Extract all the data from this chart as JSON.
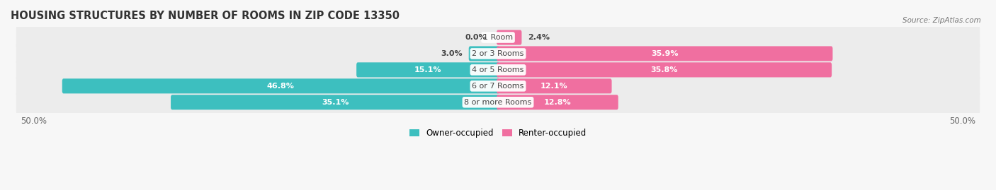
{
  "title": "HOUSING STRUCTURES BY NUMBER OF ROOMS IN ZIP CODE 13350",
  "source": "Source: ZipAtlas.com",
  "categories": [
    "1 Room",
    "2 or 3 Rooms",
    "4 or 5 Rooms",
    "6 or 7 Rooms",
    "8 or more Rooms"
  ],
  "owner_values": [
    0.0,
    3.0,
    15.1,
    46.8,
    35.1
  ],
  "renter_values": [
    2.4,
    35.9,
    35.8,
    12.1,
    12.8
  ],
  "owner_color": "#3dbfbf",
  "renter_color": "#f06fa0",
  "owner_color_light": "#7dd8d8",
  "renter_color_light": "#f8b8d0",
  "background_color": "#f7f7f7",
  "row_bg_color": "#ececec",
  "text_dark": "#444444",
  "text_white": "#ffffff",
  "axis_max": 50.0,
  "title_fontsize": 10.5,
  "bar_label_fontsize": 8.0,
  "cat_label_fontsize": 8.0,
  "axis_label_fontsize": 8.5
}
